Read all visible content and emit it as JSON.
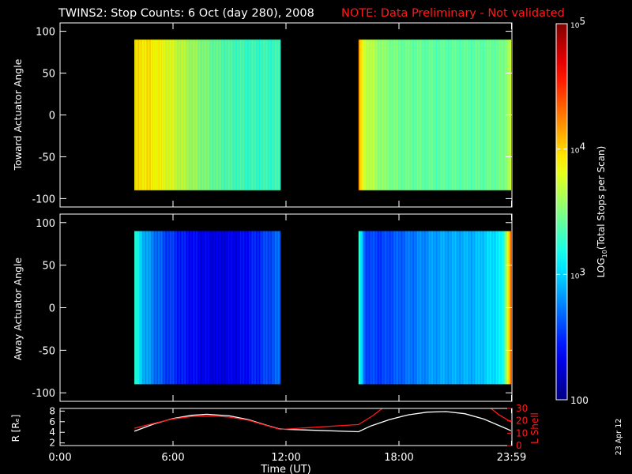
{
  "title": {
    "main": "TWINS2: Stop Counts:  6 Oct (day 280), 2008",
    "note": "NOTE: Data Preliminary - Not validated"
  },
  "side_date": "23 Apr 12",
  "colors": {
    "background": "#000000",
    "axes": "#ffffff",
    "note": "#ff1a1a",
    "r_line": "#ffffff",
    "lshell_line": "#ff1a1a"
  },
  "colormap": "jet",
  "chart_data": [
    {
      "type": "heatmap",
      "ylabel": "Toward Actuator Angle",
      "ylim": [
        -110,
        110
      ],
      "yticks": [
        100,
        50,
        0,
        -50,
        -100
      ],
      "xlim": [
        0,
        24
      ],
      "data_blocks": [
        {
          "t_start": 3.95,
          "t_end": 11.7,
          "angle_start": -90,
          "angle_end": 90
        },
        {
          "t_start": 15.85,
          "t_end": 23.95,
          "angle_start": -90,
          "angle_end": 90
        }
      ],
      "profile_log10_counts": [
        {
          "t": 3.95,
          "v": 3.9
        },
        {
          "t": 4.3,
          "v": 3.95
        },
        {
          "t": 5.0,
          "v": 3.9
        },
        {
          "t": 6.0,
          "v": 3.75
        },
        {
          "t": 7.0,
          "v": 3.6
        },
        {
          "t": 8.0,
          "v": 3.45
        },
        {
          "t": 9.0,
          "v": 3.35
        },
        {
          "t": 10.0,
          "v": 3.3
        },
        {
          "t": 11.0,
          "v": 3.3
        },
        {
          "t": 11.7,
          "v": 3.3
        },
        {
          "t": 15.85,
          "v": 4.2
        },
        {
          "t": 16.1,
          "v": 3.75
        },
        {
          "t": 17.0,
          "v": 3.55
        },
        {
          "t": 18.0,
          "v": 3.45
        },
        {
          "t": 20.0,
          "v": 3.4
        },
        {
          "t": 22.0,
          "v": 3.4
        },
        {
          "t": 23.5,
          "v": 3.45
        },
        {
          "t": 23.95,
          "v": 3.7
        }
      ]
    },
    {
      "type": "heatmap",
      "ylabel": "Away Actuator Angle",
      "ylim": [
        -110,
        110
      ],
      "yticks": [
        100,
        50,
        0,
        -50,
        -100
      ],
      "xlim": [
        0,
        24
      ],
      "data_blocks": [
        {
          "t_start": 3.95,
          "t_end": 11.7,
          "angle_start": -90,
          "angle_end": 90
        },
        {
          "t_start": 15.85,
          "t_end": 23.95,
          "angle_start": -90,
          "angle_end": 90
        }
      ],
      "profile_log10_counts": [
        {
          "t": 3.95,
          "v": 3.25
        },
        {
          "t": 4.5,
          "v": 2.9
        },
        {
          "t": 5.5,
          "v": 2.6
        },
        {
          "t": 6.5,
          "v": 2.45
        },
        {
          "t": 7.5,
          "v": 2.35
        },
        {
          "t": 8.5,
          "v": 2.3
        },
        {
          "t": 9.5,
          "v": 2.35
        },
        {
          "t": 10.5,
          "v": 2.5
        },
        {
          "t": 11.7,
          "v": 2.7
        },
        {
          "t": 15.85,
          "v": 3.3
        },
        {
          "t": 16.2,
          "v": 2.6
        },
        {
          "t": 17.0,
          "v": 2.55
        },
        {
          "t": 18.5,
          "v": 2.7
        },
        {
          "t": 20.0,
          "v": 2.85
        },
        {
          "t": 22.0,
          "v": 2.9
        },
        {
          "t": 23.5,
          "v": 3.1
        },
        {
          "t": 23.95,
          "v": 4.3
        }
      ]
    },
    {
      "type": "line",
      "ylabel": "R [Rₑ]",
      "ylabel2": "L Shell",
      "ylim": [
        1.5,
        8.5
      ],
      "yticks": [
        8,
        6,
        4,
        2
      ],
      "ylim2": [
        0,
        30
      ],
      "yticks2": [
        30,
        20,
        10,
        0
      ],
      "xlim": [
        0,
        24
      ],
      "xticks": [
        0,
        6,
        12,
        18,
        23.98
      ],
      "xticklabels": [
        "0:00",
        "6:00",
        "12:00",
        "18:00",
        "23:59"
      ],
      "xlabel": "Time (UT)",
      "series": [
        {
          "axis": "R",
          "points": [
            [
              3.95,
              4.2
            ],
            [
              5.0,
              5.6
            ],
            [
              6.0,
              6.6
            ],
            [
              7.0,
              7.2
            ],
            [
              7.8,
              7.4
            ],
            [
              9.0,
              7.1
            ],
            [
              10.0,
              6.4
            ],
            [
              11.0,
              5.3
            ],
            [
              11.7,
              4.6
            ],
            [
              15.85,
              4.1
            ],
            [
              16.5,
              5.2
            ],
            [
              17.5,
              6.4
            ],
            [
              18.5,
              7.3
            ],
            [
              19.5,
              7.8
            ],
            [
              20.5,
              7.9
            ],
            [
              21.5,
              7.5
            ],
            [
              22.5,
              6.5
            ],
            [
              23.5,
              5.0
            ],
            [
              23.95,
              4.3
            ]
          ]
        },
        {
          "axis": "L",
          "points": [
            [
              3.95,
              14
            ],
            [
              5.0,
              18
            ],
            [
              6.0,
              21.5
            ],
            [
              7.0,
              23.5
            ],
            [
              8.0,
              24
            ],
            [
              9.0,
              23
            ],
            [
              10.0,
              20.5
            ],
            [
              11.0,
              16
            ],
            [
              11.7,
              13
            ],
            [
              15.85,
              17
            ],
            [
              16.6,
              24
            ],
            [
              17.2,
              31
            ],
            [
              22.8,
              31
            ],
            [
              23.3,
              25
            ],
            [
              23.95,
              19
            ]
          ]
        }
      ]
    }
  ],
  "colorbar": {
    "label_prefix": "LOG",
    "label_sub": "10",
    "label_rest": "(Total Stops per Scan)",
    "scale": "log",
    "range": [
      100,
      100000
    ],
    "labels": [
      {
        "value": 100000,
        "base": "10",
        "exp": "5"
      },
      {
        "value": 10000,
        "base": "10",
        "exp": "4"
      },
      {
        "value": 1000,
        "base": "10",
        "exp": "3"
      },
      {
        "value": 100,
        "base": "100",
        "exp": ""
      }
    ]
  }
}
